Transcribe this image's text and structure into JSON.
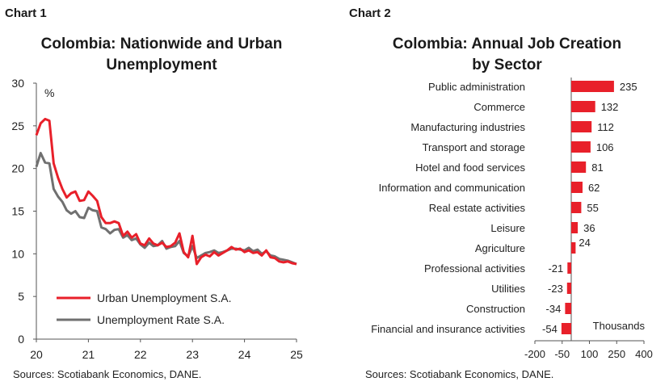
{
  "chart1": {
    "label": "Chart 1",
    "title_line1": "Colombia: Nationwide and Urban",
    "title_line2": "Unemployment",
    "source": "Sources: Scotiabank Economics, DANE.",
    "unit_label": "%"
  },
  "chart2": {
    "label": "Chart 2",
    "title_line1": "Colombia: Annual Job Creation",
    "title_line2": "by Sector",
    "source": "Sources: Scotiabank Economics, DANE.",
    "unit_label": "Thousands"
  },
  "colors": {
    "red": "#e8202a",
    "gray": "#707070"
  },
  "chart_data": [
    {
      "type": "line",
      "title": "Colombia: Nationwide and Urban Unemployment",
      "ylabel": "%",
      "xlabel": "",
      "xlim": [
        2020,
        2025
      ],
      "ylim": [
        0,
        30
      ],
      "x_ticks": [
        2020,
        2021,
        2022,
        2023,
        2024,
        2025
      ],
      "x_tick_labels": [
        "20",
        "21",
        "22",
        "23",
        "24",
        "25"
      ],
      "y_ticks": [
        0,
        5,
        10,
        15,
        20,
        25,
        30
      ],
      "grid": false,
      "legend_position": "bottom-left",
      "series": [
        {
          "name": "Urban Unemployment S.A.",
          "color": "#e8202a",
          "x": [
            2020.0,
            2020.083,
            2020.167,
            2020.25,
            2020.333,
            2020.417,
            2020.5,
            2020.583,
            2020.667,
            2020.75,
            2020.833,
            2020.917,
            2021.0,
            2021.083,
            2021.167,
            2021.25,
            2021.333,
            2021.417,
            2021.5,
            2021.583,
            2021.667,
            2021.75,
            2021.833,
            2021.917,
            2022.0,
            2022.083,
            2022.167,
            2022.25,
            2022.333,
            2022.417,
            2022.5,
            2022.583,
            2022.667,
            2022.75,
            2022.833,
            2022.917,
            2023.0,
            2023.083,
            2023.167,
            2023.25,
            2023.333,
            2023.417,
            2023.5,
            2023.583,
            2023.667,
            2023.75,
            2023.833,
            2023.917,
            2024.0,
            2024.083,
            2024.167,
            2024.25,
            2024.333,
            2024.417,
            2024.5,
            2024.583,
            2024.667,
            2024.75,
            2024.833,
            2024.917,
            2025.0
          ],
          "y": [
            23.9,
            25.3,
            25.8,
            25.6,
            20.6,
            18.9,
            17.6,
            16.6,
            17.1,
            17.3,
            16.2,
            16.3,
            17.3,
            16.8,
            16.2,
            14.3,
            13.6,
            13.6,
            13.8,
            13.6,
            12.1,
            12.6,
            11.9,
            12.3,
            11.2,
            11.0,
            11.8,
            11.2,
            11.0,
            11.3,
            10.8,
            10.9,
            11.3,
            12.4,
            10.2,
            9.6,
            12.1,
            8.8,
            9.6,
            9.9,
            9.7,
            10.2,
            9.8,
            10.1,
            10.4,
            10.8,
            10.5,
            10.6,
            10.2,
            10.4,
            10.1,
            10.2,
            9.8,
            10.4,
            9.6,
            9.5,
            9.1,
            9.0,
            9.1,
            8.9,
            8.8
          ]
        },
        {
          "name": "Unemployment Rate S.A.",
          "color": "#707070",
          "x": [
            2020.0,
            2020.083,
            2020.167,
            2020.25,
            2020.333,
            2020.417,
            2020.5,
            2020.583,
            2020.667,
            2020.75,
            2020.833,
            2020.917,
            2021.0,
            2021.083,
            2021.167,
            2021.25,
            2021.333,
            2021.417,
            2021.5,
            2021.583,
            2021.667,
            2021.75,
            2021.833,
            2021.917,
            2022.0,
            2022.083,
            2022.167,
            2022.25,
            2022.333,
            2022.417,
            2022.5,
            2022.583,
            2022.667,
            2022.75,
            2022.833,
            2022.917,
            2023.0,
            2023.083,
            2023.167,
            2023.25,
            2023.333,
            2023.417,
            2023.5,
            2023.583,
            2023.667,
            2023.75,
            2023.833,
            2023.917,
            2024.0,
            2024.083,
            2024.167,
            2024.25,
            2024.333,
            2024.417,
            2024.5,
            2024.583,
            2024.667,
            2024.75,
            2024.833,
            2024.917,
            2025.0
          ],
          "y": [
            20.2,
            21.8,
            20.7,
            20.6,
            17.6,
            16.7,
            16.1,
            15.1,
            14.7,
            15.0,
            14.3,
            14.2,
            15.4,
            15.1,
            15.0,
            13.1,
            12.9,
            12.4,
            12.8,
            12.9,
            11.9,
            12.2,
            11.6,
            11.8,
            11.1,
            10.7,
            11.3,
            10.9,
            11.0,
            11.5,
            10.6,
            10.8,
            10.9,
            11.5,
            10.1,
            9.7,
            10.9,
            9.5,
            9.8,
            10.1,
            10.2,
            10.4,
            10.1,
            10.2,
            10.4,
            10.6,
            10.6,
            10.5,
            10.4,
            10.7,
            10.3,
            10.5,
            10.0,
            10.3,
            9.8,
            9.7,
            9.4,
            9.3,
            9.2,
            9.0,
            8.8
          ]
        }
      ]
    },
    {
      "type": "bar",
      "orientation": "horizontal",
      "title": "Colombia: Annual Job Creation by Sector",
      "xlabel": "Thousands",
      "ylabel": "",
      "xlim": [
        -200,
        400
      ],
      "x_ticks": [
        -200,
        -50,
        100,
        250,
        400
      ],
      "x_tick_labels": [
        "-200",
        "-50",
        "100",
        "250",
        "400"
      ],
      "categories": [
        "Public administration",
        "Commerce",
        "Manufacturing industries",
        "Transport and storage",
        "Hotel and food services",
        "Information and communication",
        "Real estate activities",
        "Leisure",
        "Agriculture",
        "Professional activities",
        "Utilities",
        "Construction",
        "Financial and insurance activities"
      ],
      "values": [
        235,
        132,
        112,
        106,
        81,
        62,
        55,
        36,
        24,
        -21,
        -23,
        -34,
        -54
      ],
      "color": "#e8202a",
      "grid": false
    }
  ]
}
